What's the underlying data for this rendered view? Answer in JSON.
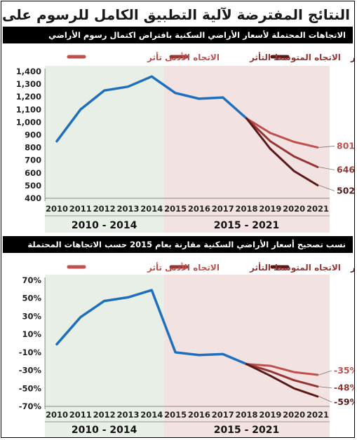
{
  "header": {
    "title": "النتائج المفترضة لآلية التطبيق الكامل للرسوم على الأراضي"
  },
  "colors": {
    "actual": "#1f6fbf",
    "low": "#c0504d",
    "medium": "#943634",
    "high": "#5a1a1a",
    "shade_left": "#e8efe6",
    "shade_right": "#f2e2e1"
  },
  "chart_data": [
    {
      "type": "line",
      "title": "الاتجاهات المحتملة لأسعار الأراضي السكنية بافتراض اكتمال رسوم الأراضي",
      "x": [
        "2010",
        "2011",
        "2012",
        "2013",
        "2014",
        "2015",
        "2016",
        "2017",
        "2018",
        "2019",
        "2020",
        "2021"
      ],
      "ylim": [
        400,
        1400
      ],
      "yticks": [
        "400",
        "500",
        "600",
        "700",
        "800",
        "900",
        "1,000",
        "1,100",
        "1,200",
        "1,300",
        "1,400"
      ],
      "ytick_values": [
        400,
        500,
        600,
        700,
        800,
        900,
        1000,
        1100,
        1200,
        1300,
        1400
      ],
      "grid": false,
      "legend_position": "top",
      "period_labels": [
        "2010 - 2014",
        "2015 - 2021"
      ],
      "series": [
        {
          "values": [
            850,
            1100,
            1250,
            1280,
            1360,
            1230,
            1185,
            1195,
            1030,
            null,
            null,
            null
          ]
        },
        {
          "name": "الاتجاه الأدنى تأثر",
          "values": [
            null,
            null,
            null,
            null,
            null,
            null,
            null,
            null,
            1030,
            915,
            845,
            801
          ]
        },
        {
          "name": "الاتجاه المتوسط التأثر",
          "values": [
            null,
            null,
            null,
            null,
            null,
            null,
            null,
            null,
            1030,
            850,
            730,
            646
          ]
        },
        {
          "name": "الاتجاه الأقوى التأثر",
          "values": [
            null,
            null,
            null,
            null,
            null,
            null,
            null,
            null,
            1030,
            790,
            615,
            502
          ]
        }
      ],
      "end_labels": [
        "801",
        "646",
        "502"
      ]
    },
    {
      "type": "line",
      "title": "نسب تصحيح أسعار الأراضي السكنية مقارنة بعام 2015 حسب الاتجاهات المحتملة",
      "x": [
        "2010",
        "2011",
        "2012",
        "2013",
        "2014",
        "2015",
        "2016",
        "2017",
        "2018",
        "2019",
        "2020",
        "2021"
      ],
      "ylim": [
        -70,
        70
      ],
      "yticks": [
        "70%",
        "50%",
        "30%",
        "10%",
        "-10%",
        "-30%",
        "-50%",
        "-70%"
      ],
      "ytick_values": [
        70,
        50,
        30,
        10,
        -10,
        -30,
        -50,
        -70
      ],
      "grid": false,
      "legend_position": "top",
      "period_labels": [
        "2010 - 2014",
        "2015 - 2021"
      ],
      "series": [
        {
          "values": [
            -1,
            29,
            47,
            51,
            59,
            -10,
            -13,
            -12,
            -23,
            null,
            null,
            null
          ]
        },
        {
          "name": "الاتجاه الأدنى تأثر",
          "values": [
            null,
            null,
            null,
            null,
            null,
            null,
            null,
            null,
            -23,
            -25,
            -32,
            -35
          ]
        },
        {
          "name": "الاتجاه المتوسط التأثر",
          "values": [
            null,
            null,
            null,
            null,
            null,
            null,
            null,
            null,
            -23,
            -31,
            -41,
            -48
          ]
        },
        {
          "name": "الاتجاه الأقوى التأثر",
          "values": [
            null,
            null,
            null,
            null,
            null,
            null,
            null,
            null,
            -23,
            -36,
            -50,
            -59
          ]
        }
      ],
      "end_labels": [
        "-35%",
        "-48%",
        "-59%"
      ]
    }
  ]
}
